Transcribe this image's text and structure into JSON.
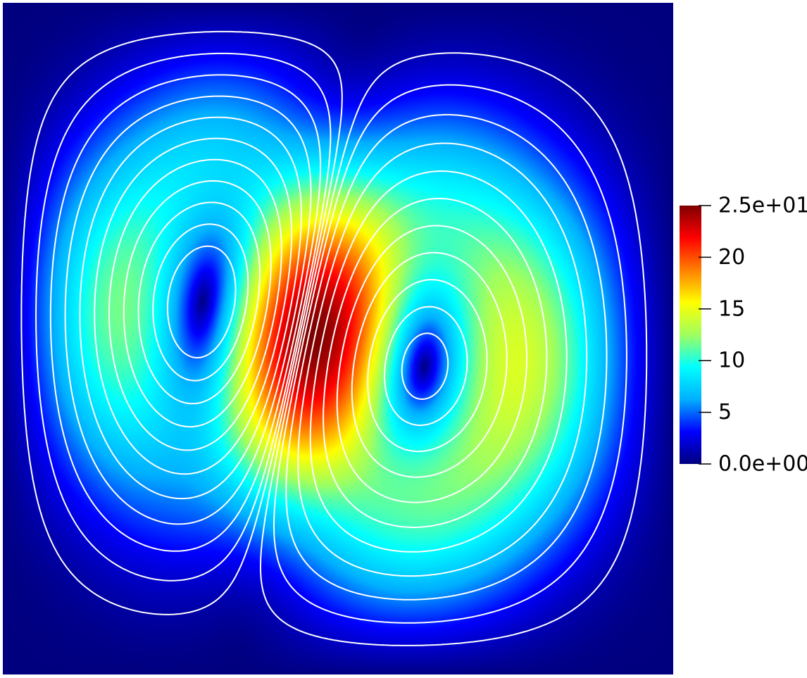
{
  "chart_data": {
    "type": "heatmap",
    "title": "",
    "xlabel": "",
    "ylabel": "",
    "domain": {
      "x": [
        0,
        1
      ],
      "y": [
        0,
        1
      ]
    },
    "colorbar": {
      "range": [
        0,
        25
      ],
      "orientation": "vertical",
      "placement": "right",
      "colormap": "jet",
      "stops": [
        "#00007f",
        "#0000ff",
        "#00b0ff",
        "#00ffff",
        "#a0ff5f",
        "#ffff00",
        "#ff8000",
        "#ff0000",
        "#7f0000"
      ],
      "ticks": [
        {
          "value": 25,
          "label": "2.5e+01"
        },
        {
          "value": 20,
          "label": "20"
        },
        {
          "value": 15,
          "label": "15"
        },
        {
          "value": 10,
          "label": "10"
        },
        {
          "value": 5,
          "label": "5"
        },
        {
          "value": 0,
          "label": "0.0e+00"
        }
      ]
    },
    "field": {
      "description_of_features": [
        {
          "kind": "maximum",
          "value": 25,
          "x": 0.46,
          "y": 0.52
        },
        {
          "kind": "vortex-core-minimum",
          "value": 0,
          "x": 0.27,
          "y": 0.57
        },
        {
          "kind": "vortex-core-minimum",
          "value": 0,
          "x": 0.63,
          "y": 0.44
        }
      ]
    },
    "streamlines": {
      "color": "#ffffff",
      "vortex_centers": [
        {
          "x": 0.27,
          "y": 0.57
        },
        {
          "x": 0.63,
          "y": 0.44
        }
      ]
    },
    "grid": false,
    "legend": "none"
  }
}
